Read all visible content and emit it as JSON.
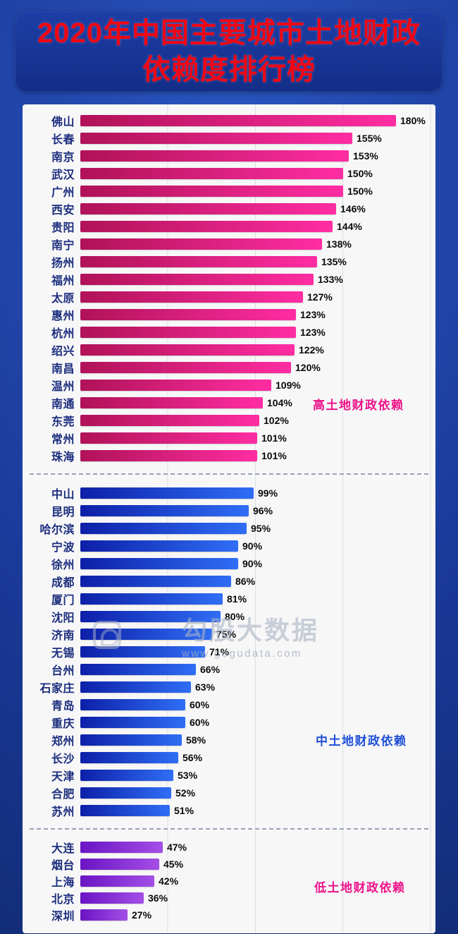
{
  "title": {
    "line1": "2020年中国主要城市土地财政",
    "line2": "依赖度排行榜"
  },
  "watermark": {
    "brand": "勾股大数据",
    "url": "www.gogudata.com"
  },
  "colors": {
    "page_background": "#1a3a9a",
    "banner_background": "#142f88",
    "title_text": "#ee0714",
    "panel_background": "#f7f7f8",
    "gridline": "#dcdee2",
    "city_label": "#1c2e7d",
    "value_label": "#0a0a0a",
    "high_annotation": "#ee1289",
    "mid_annotation": "#1f4fd8",
    "low_annotation": "#ee1289"
  },
  "chart_data": {
    "type": "bar",
    "orientation": "horizontal",
    "unit": "%",
    "max_value": 180,
    "gridline_interval": 50,
    "title": "2020年中国主要城市土地财政依赖度排行榜",
    "groups": [
      {
        "name": "high",
        "annotation": "高土地财政依赖",
        "annotation_color": "#ee1289",
        "bar_gradient": [
          "#b01258",
          "#ff2da2"
        ],
        "items": [
          {
            "city": "佛山",
            "value": 180
          },
          {
            "city": "长春",
            "value": 155
          },
          {
            "city": "南京",
            "value": 153
          },
          {
            "city": "武汉",
            "value": 150
          },
          {
            "city": "广州",
            "value": 150
          },
          {
            "city": "西安",
            "value": 146
          },
          {
            "city": "贵阳",
            "value": 144
          },
          {
            "city": "南宁",
            "value": 138
          },
          {
            "city": "扬州",
            "value": 135
          },
          {
            "city": "福州",
            "value": 133
          },
          {
            "city": "太原",
            "value": 127
          },
          {
            "city": "惠州",
            "value": 123
          },
          {
            "city": "杭州",
            "value": 123
          },
          {
            "city": "绍兴",
            "value": 122
          },
          {
            "city": "南昌",
            "value": 120
          },
          {
            "city": "温州",
            "value": 109
          },
          {
            "city": "南通",
            "value": 104
          },
          {
            "city": "东莞",
            "value": 102
          },
          {
            "city": "常州",
            "value": 101
          },
          {
            "city": "珠海",
            "value": 101
          }
        ]
      },
      {
        "name": "mid",
        "annotation": "中土地财政依赖",
        "annotation_color": "#1f4fd8",
        "bar_gradient": [
          "#0d1fa8",
          "#2f6ef5"
        ],
        "items": [
          {
            "city": "中山",
            "value": 99
          },
          {
            "city": "昆明",
            "value": 96
          },
          {
            "city": "哈尔滨",
            "value": 95
          },
          {
            "city": "宁波",
            "value": 90
          },
          {
            "city": "徐州",
            "value": 90
          },
          {
            "city": "成都",
            "value": 86
          },
          {
            "city": "厦门",
            "value": 81
          },
          {
            "city": "沈阳",
            "value": 80
          },
          {
            "city": "济南",
            "value": 75
          },
          {
            "city": "无锡",
            "value": 71
          },
          {
            "city": "台州",
            "value": 66
          },
          {
            "city": "石家庄",
            "value": 63
          },
          {
            "city": "青岛",
            "value": 60
          },
          {
            "city": "重庆",
            "value": 60
          },
          {
            "city": "郑州",
            "value": 58
          },
          {
            "city": "长沙",
            "value": 56
          },
          {
            "city": "天津",
            "value": 53
          },
          {
            "city": "合肥",
            "value": 52
          },
          {
            "city": "苏州",
            "value": 51
          }
        ]
      },
      {
        "name": "low",
        "annotation": "低土地财政依赖",
        "annotation_color": "#ee1289",
        "bar_gradient": [
          "#6a14c4",
          "#a44fe6"
        ],
        "items": [
          {
            "city": "大连",
            "value": 47
          },
          {
            "city": "烟台",
            "value": 45
          },
          {
            "city": "上海",
            "value": 42
          },
          {
            "city": "北京",
            "value": 36
          },
          {
            "city": "深圳",
            "value": 27
          }
        ]
      }
    ]
  }
}
